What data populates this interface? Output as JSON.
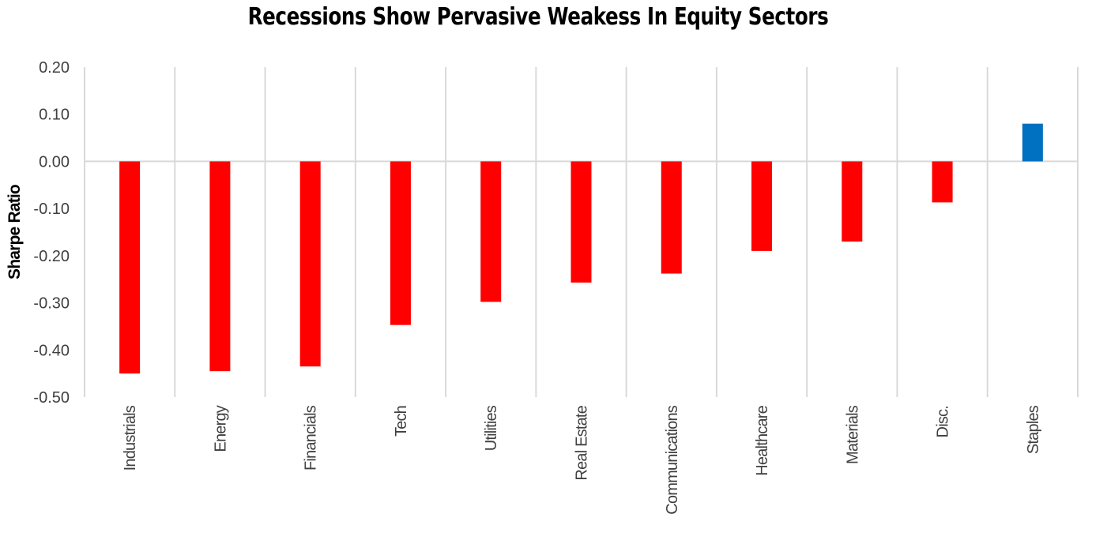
{
  "title": "Recessions Show Pervasive Weakess In Equity Sectors",
  "chart_data": {
    "type": "bar",
    "title": "Recessions Show Pervasive Weakess In Equity Sectors",
    "xlabel": "",
    "ylabel": "Sharpe Ratio",
    "ylim": [
      -0.5,
      0.2
    ],
    "yticks": [
      "0.20",
      "0.10",
      "0.00",
      "-0.10",
      "-0.20",
      "-0.30",
      "-0.40",
      "-0.50"
    ],
    "ytick_values": [
      0.2,
      0.1,
      0.0,
      -0.1,
      -0.2,
      -0.3,
      -0.4,
      -0.5
    ],
    "categories": [
      "Industrials",
      "Energy",
      "Financials",
      "Tech",
      "Utilities",
      "Real Estate",
      "Communications",
      "Healthcare",
      "Materials",
      "Disc.",
      "Staples"
    ],
    "values": [
      -0.45,
      -0.445,
      -0.435,
      -0.347,
      -0.298,
      -0.257,
      -0.238,
      -0.19,
      -0.17,
      -0.087,
      0.08
    ],
    "grid": "vertical",
    "colors": {
      "negative": "#ff0000",
      "positive": "#0070c0",
      "grid": "#d9d9d9"
    }
  }
}
